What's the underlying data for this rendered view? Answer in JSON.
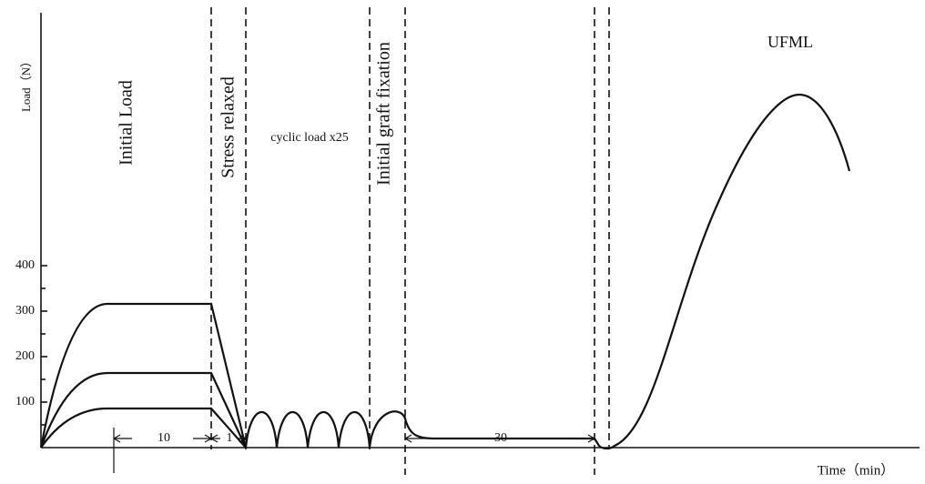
{
  "axis": {
    "y_label": "Load（N）",
    "x_label": "Time（min）",
    "y_ticks": [
      "100",
      "200",
      "300",
      "400"
    ]
  },
  "phases": {
    "initial_load": "Initial Load",
    "stress_relaxed": "Stress relaxed",
    "cyclic_load": "cyclic load x25",
    "initial_graft_fixation": "Initial graft fixation",
    "ufml": "UFML"
  },
  "durations": [
    "10",
    "1",
    "30"
  ]
}
